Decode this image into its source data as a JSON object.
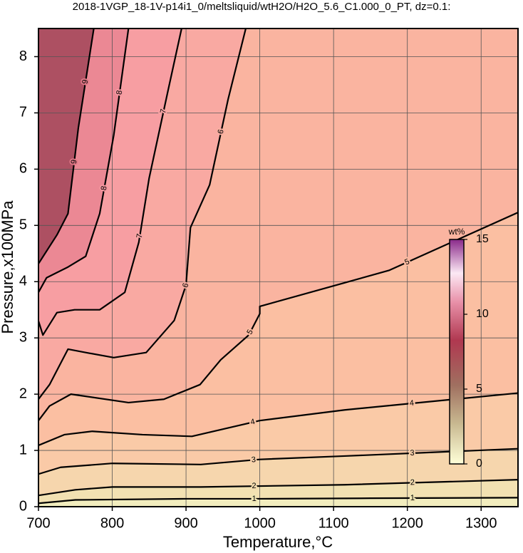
{
  "chart_data": {
    "type": "contour",
    "title": "2018-1VGP_18-1V-p14i1_0/meltsliquid/wtH2O/H2O_5.6_C1.000_0_PT, dz=0.1:",
    "x_label": "Temperature,°C",
    "y_label": "Pressure,x100MPa",
    "xlim": [
      700,
      1350
    ],
    "ylim": [
      0,
      8.5
    ],
    "xticks": [
      700,
      800,
      900,
      1000,
      1100,
      1200,
      1300
    ],
    "yticks": [
      0,
      1,
      2,
      3,
      4,
      5,
      6,
      7,
      8
    ],
    "grid": true,
    "series": [
      {
        "name": "1",
        "color": "#000000",
        "x": [
          700,
          750,
          900,
          1000,
          1150,
          1350
        ],
        "values": [
          0.06,
          0.12,
          0.14,
          0.14,
          0.15,
          0.16
        ]
      },
      {
        "name": "2",
        "color": "#000000",
        "x": [
          700,
          750,
          800,
          920,
          1115,
          1350
        ],
        "values": [
          0.2,
          0.3,
          0.35,
          0.35,
          0.39,
          0.48
        ]
      },
      {
        "name": "3",
        "color": "#000000",
        "x": [
          700,
          730,
          800,
          920,
          1000,
          1115,
          1350
        ],
        "values": [
          0.58,
          0.7,
          0.77,
          0.75,
          0.84,
          0.9,
          1.03
        ]
      },
      {
        "name": "4",
        "color": "#000000",
        "x": [
          700,
          735,
          773,
          841,
          908,
          1000,
          1115,
          1350
        ],
        "values": [
          1.09,
          1.28,
          1.34,
          1.28,
          1.25,
          1.53,
          1.72,
          2.02
        ]
      },
      {
        "name": "5",
        "color": "#000000",
        "x": [
          700,
          715,
          744,
          822,
          870,
          919,
          947,
          985,
          1000,
          1000,
          1115,
          1175,
          1350
        ],
        "values": [
          1.53,
          1.79,
          2.0,
          1.85,
          1.91,
          2.17,
          2.61,
          3.05,
          3.43,
          3.56,
          3.98,
          4.2,
          5.23
        ]
      },
      {
        "name": "6",
        "color": "#000000",
        "x": [
          700,
          715,
          740,
          764,
          802,
          846,
          884,
          900,
          906,
          932,
          957,
          981
        ],
        "values": [
          1.91,
          2.17,
          2.8,
          2.74,
          2.65,
          2.74,
          3.31,
          3.94,
          4.96,
          5.72,
          7.24,
          8.5
        ]
      },
      {
        "name": "7",
        "color": "#000000",
        "x": [
          700,
          706,
          725,
          749,
          783,
          817,
          836,
          850,
          875,
          894
        ],
        "values": [
          3.3,
          3.05,
          3.45,
          3.5,
          3.5,
          3.81,
          4.7,
          5.84,
          7.36,
          8.5
        ]
      },
      {
        "name": "8",
        "color": "#000000",
        "x": [
          700,
          711,
          740,
          764,
          783,
          802,
          822
        ],
        "values": [
          3.81,
          4.07,
          4.26,
          4.45,
          5.21,
          6.6,
          8.5
        ]
      },
      {
        "name": "9",
        "color": "#000000",
        "x": [
          700,
          725,
          740,
          754,
          775
        ],
        "values": [
          4.32,
          4.83,
          5.21,
          6.73,
          8.5
        ]
      }
    ],
    "colorbar": {
      "label": "wt%",
      "lim": [
        0,
        15
      ],
      "ticks": [
        0,
        5,
        10,
        15
      ]
    }
  }
}
